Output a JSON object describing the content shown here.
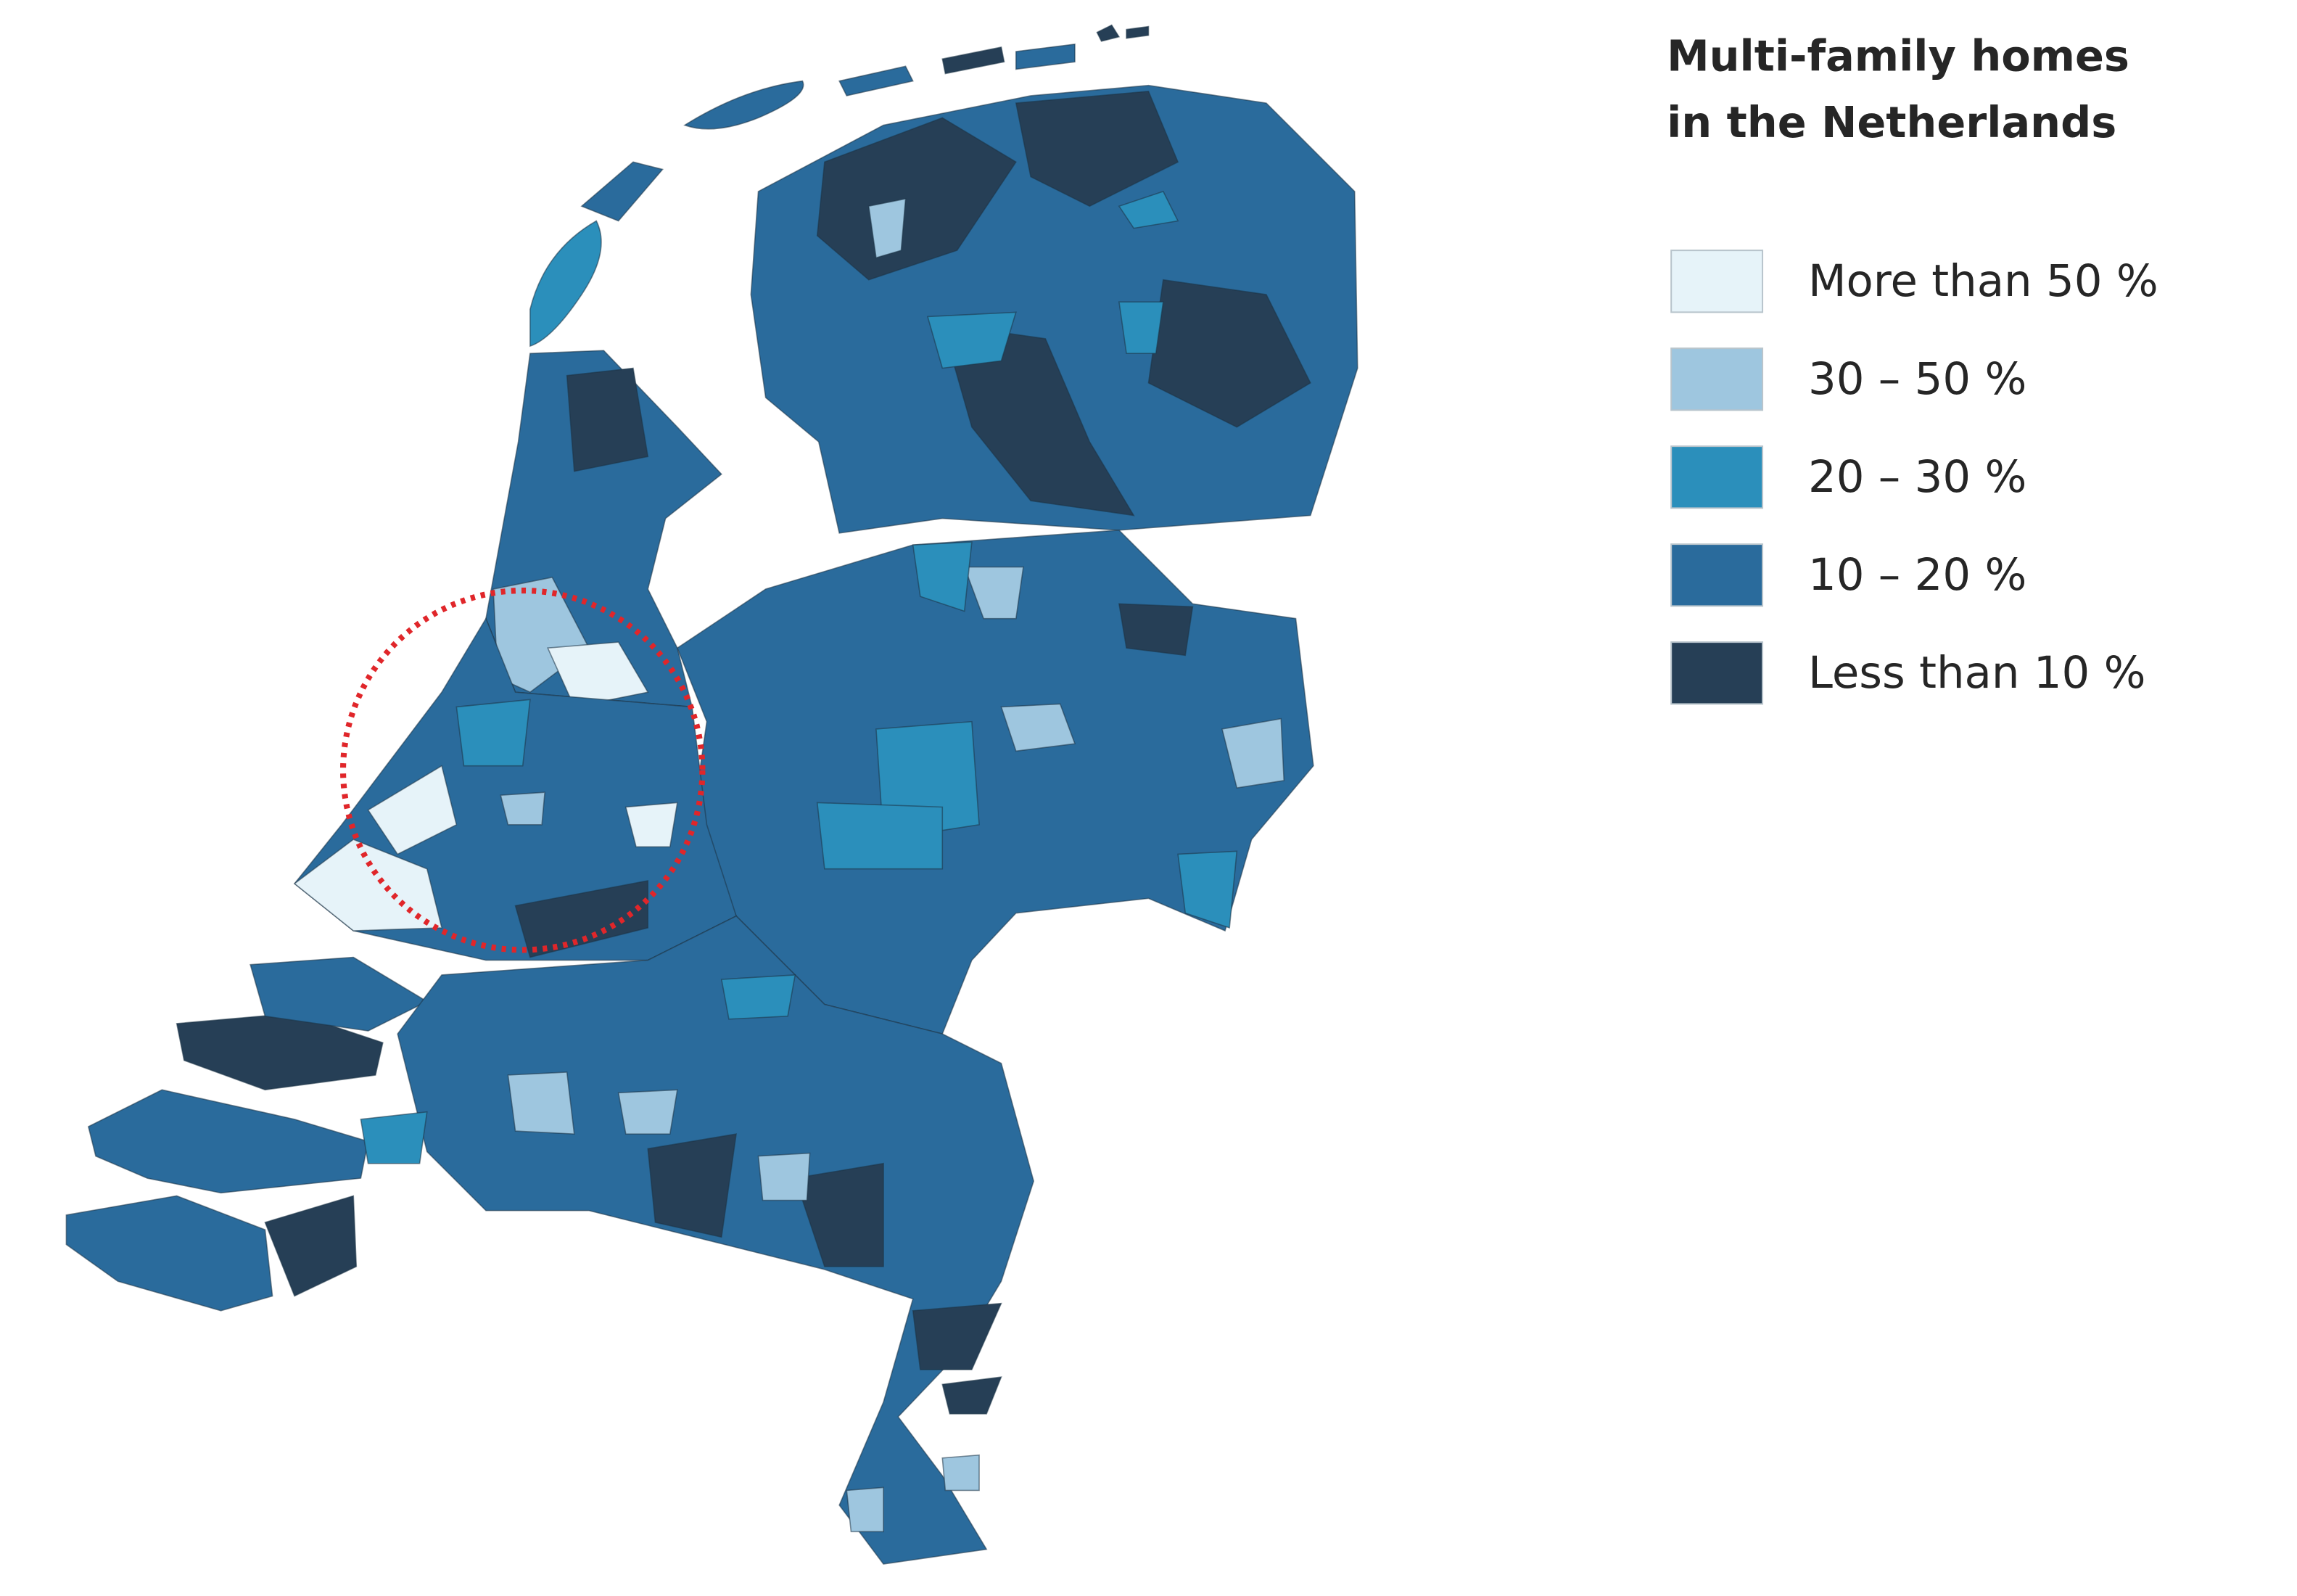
{
  "title": [
    "Multi-family homes",
    "in the Netherlands"
  ],
  "legend": [
    {
      "label": "More than 50 %",
      "color": "#e6f3f9"
    },
    {
      "label": "30 – 50 %",
      "color": "#9ec6df"
    },
    {
      "label": "20 – 30 %",
      "color": "#2b8fbb"
    },
    {
      "label": "10 – 20 %",
      "color": "#2a6b9c"
    },
    {
      "label": "Less than 10 %",
      "color": "#263f56"
    }
  ]
}
